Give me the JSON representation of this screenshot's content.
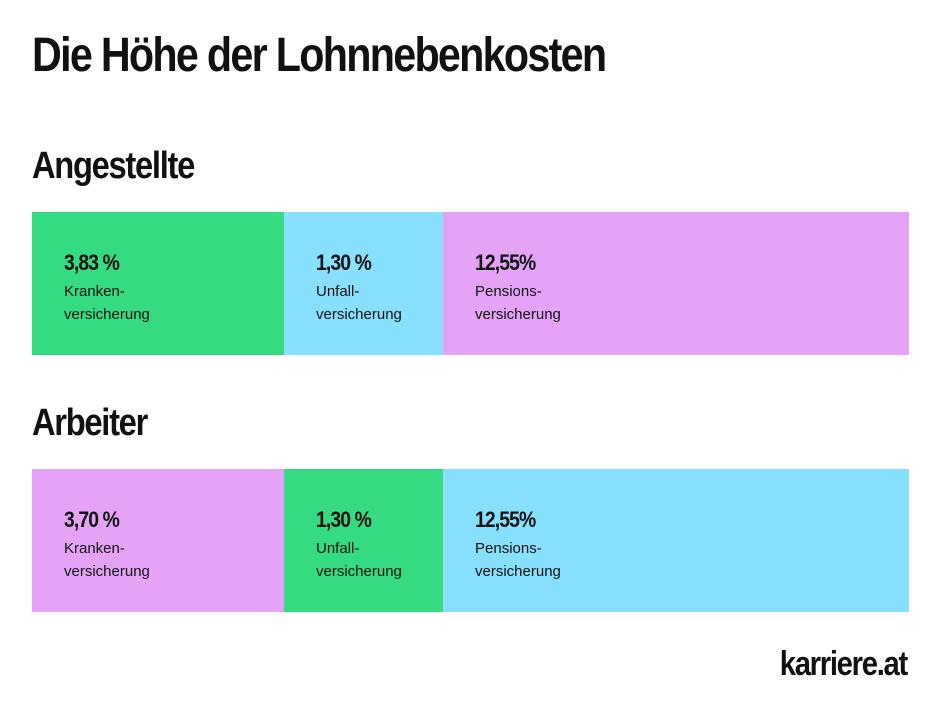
{
  "title": "Die Höhe der Lohnnebenkosten",
  "logo_text": "karriere.at",
  "colors": {
    "green": "#34db80",
    "blue": "#87e0fd",
    "purple": "#e5a3f8"
  },
  "chart_data": [
    {
      "type": "bar",
      "title": "Angestellte",
      "stacked": true,
      "orientation": "horizontal",
      "categories": [
        "Krankenversicherung",
        "Unfallversicherung",
        "Pensionsversicherung"
      ],
      "values": [
        3.83,
        1.3,
        12.55
      ],
      "value_labels": [
        "3,83 %",
        "1,30 %",
        "12,55%"
      ],
      "label_lines": [
        [
          "Kranken-",
          "versicherung"
        ],
        [
          "Unfall-",
          "versicherung"
        ],
        [
          "Pensions-",
          "versicherung"
        ]
      ],
      "segment_colors": [
        "#34db80",
        "#87e0fd",
        "#e5a3f8"
      ]
    },
    {
      "type": "bar",
      "title": "Arbeiter",
      "stacked": true,
      "orientation": "horizontal",
      "categories": [
        "Krankenversicherung",
        "Unfallversicherung",
        "Pensionsversicherung"
      ],
      "values": [
        3.7,
        1.3,
        12.55
      ],
      "value_labels": [
        "3,70 %",
        "1,30 %",
        "12,55%"
      ],
      "label_lines": [
        [
          "Kranken-",
          "versicherung"
        ],
        [
          "Unfall-",
          "versicherung"
        ],
        [
          "Pensions-",
          "versicherung"
        ]
      ],
      "segment_colors": [
        "#e5a3f8",
        "#34db80",
        "#87e0fd"
      ]
    }
  ]
}
